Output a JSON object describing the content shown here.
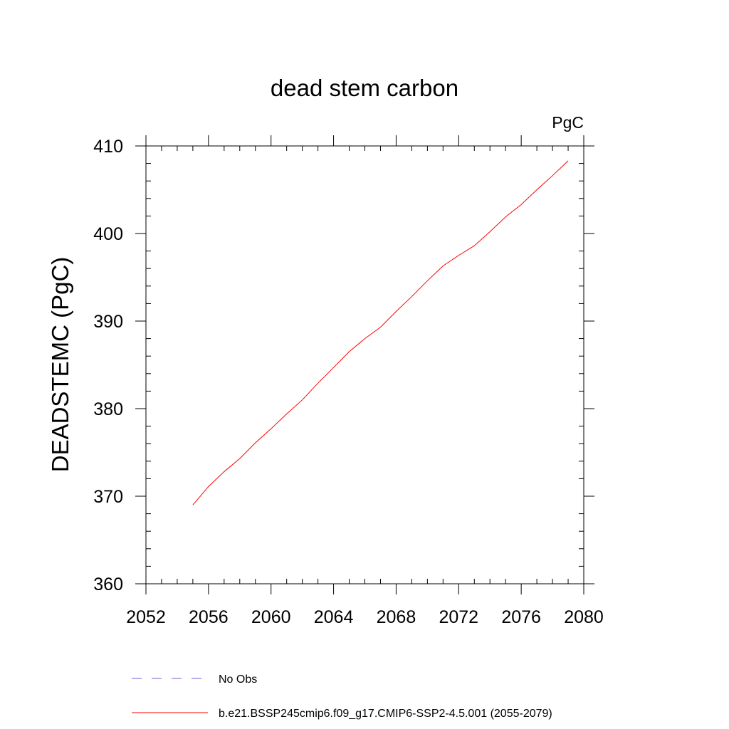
{
  "chart_data": {
    "type": "line",
    "title": "dead stem carbon",
    "units_label": "PgC",
    "xlabel": "",
    "ylabel": "DEADSTEMC  (PgC)",
    "xlim": [
      2052,
      2080
    ],
    "ylim": [
      360,
      410
    ],
    "x_ticks": [
      2052,
      2056,
      2060,
      2064,
      2068,
      2072,
      2076,
      2080
    ],
    "y_ticks": [
      360,
      370,
      380,
      390,
      400,
      410
    ],
    "x_minor_step": 1,
    "y_minor_step": 2,
    "grid": false,
    "legend_position": "bottom",
    "series": [
      {
        "name": "b.e21.BSSP245cmip6.f09_g17.CMIP6-SSP2-4.5.001 (2055-2079)",
        "color": "#ff0000",
        "style": "solid",
        "x": [
          2055,
          2056,
          2057,
          2058,
          2059,
          2060,
          2061,
          2062,
          2063,
          2064,
          2065,
          2066,
          2067,
          2068,
          2069,
          2070,
          2071,
          2072,
          2073,
          2074,
          2075,
          2076,
          2077,
          2078,
          2079
        ],
        "y": [
          369.0,
          371.1,
          372.8,
          374.3,
          376.1,
          377.7,
          379.4,
          381.0,
          382.9,
          384.7,
          386.5,
          388.0,
          389.3,
          391.1,
          392.8,
          394.6,
          396.3,
          397.5,
          398.6,
          400.2,
          401.9,
          403.3,
          405.0,
          406.6,
          408.3
        ]
      }
    ],
    "legend": [
      {
        "label": "No Obs",
        "color": "#6b5fd6",
        "style": "dashed"
      },
      {
        "label": "b.e21.BSSP245cmip6.f09_g17.CMIP6-SSP2-4.5.001 (2055-2079)",
        "color": "#ff0000",
        "style": "solid"
      }
    ]
  }
}
